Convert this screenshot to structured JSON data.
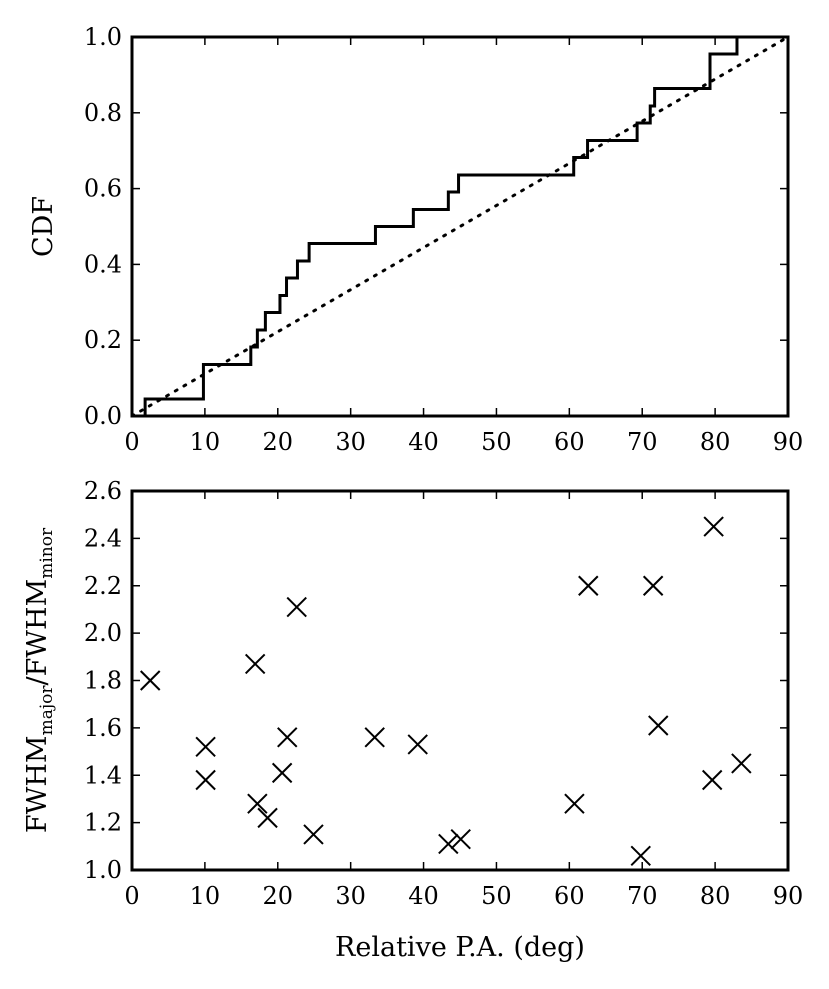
{
  "chart_data": [
    {
      "type": "line",
      "ylabel": "CDF",
      "xlim": [
        0,
        90
      ],
      "ylim": [
        0,
        1.0
      ],
      "xticks": [
        "0",
        "10",
        "20",
        "30",
        "40",
        "50",
        "60",
        "70",
        "80",
        "90"
      ],
      "yticks": [
        "0.0",
        "0.2",
        "0.4",
        "0.6",
        "0.8",
        "1.0"
      ],
      "grid": false,
      "series": [
        {
          "style": "solid-step",
          "x": [
            1.8,
            9.8,
            16.3,
            17.2,
            18.3,
            20.3,
            21.2,
            22.7,
            24.3,
            33.4,
            38.6,
            43.4,
            44.8,
            60.6,
            62.5,
            69.3,
            71.1,
            71.7,
            79.3,
            83.0
          ],
          "y": [
            0.045,
            0.136,
            0.182,
            0.227,
            0.273,
            0.318,
            0.364,
            0.409,
            0.455,
            0.5,
            0.545,
            0.591,
            0.636,
            0.682,
            0.727,
            0.773,
            0.818,
            0.864,
            0.955,
            1.0
          ]
        },
        {
          "style": "dotted",
          "x": [
            0,
            90
          ],
          "y": [
            0,
            1.0
          ]
        }
      ]
    },
    {
      "type": "scatter",
      "xlabel": "Relative P.A. (deg)",
      "ylabel": {
        "pre": "FWHM",
        "sub1": "major",
        "mid": "/FWHM",
        "sub2": "minor"
      },
      "xlim": [
        0,
        90
      ],
      "ylim": [
        1.0,
        2.6
      ],
      "xticks": [
        "0",
        "10",
        "20",
        "30",
        "40",
        "50",
        "60",
        "70",
        "80",
        "90"
      ],
      "yticks": [
        "1.0",
        "1.2",
        "1.4",
        "1.6",
        "1.8",
        "2.0",
        "2.2",
        "2.4",
        "2.6"
      ],
      "marker": "x",
      "grid": false,
      "points": [
        {
          "x": 2.5,
          "y": 1.8
        },
        {
          "x": 10.1,
          "y": 1.52
        },
        {
          "x": 10.1,
          "y": 1.38
        },
        {
          "x": 16.9,
          "y": 1.87
        },
        {
          "x": 17.2,
          "y": 1.28
        },
        {
          "x": 18.6,
          "y": 1.22
        },
        {
          "x": 20.6,
          "y": 1.41
        },
        {
          "x": 21.3,
          "y": 1.56
        },
        {
          "x": 22.6,
          "y": 2.11
        },
        {
          "x": 24.9,
          "y": 1.15
        },
        {
          "x": 33.3,
          "y": 1.56
        },
        {
          "x": 39.2,
          "y": 1.53
        },
        {
          "x": 43.4,
          "y": 1.11
        },
        {
          "x": 45.1,
          "y": 1.13
        },
        {
          "x": 60.7,
          "y": 1.28
        },
        {
          "x": 62.6,
          "y": 2.2
        },
        {
          "x": 69.8,
          "y": 1.06
        },
        {
          "x": 71.5,
          "y": 2.2
        },
        {
          "x": 72.2,
          "y": 1.61
        },
        {
          "x": 79.8,
          "y": 2.45
        },
        {
          "x": 79.6,
          "y": 1.38
        },
        {
          "x": 83.6,
          "y": 1.45
        }
      ]
    }
  ]
}
